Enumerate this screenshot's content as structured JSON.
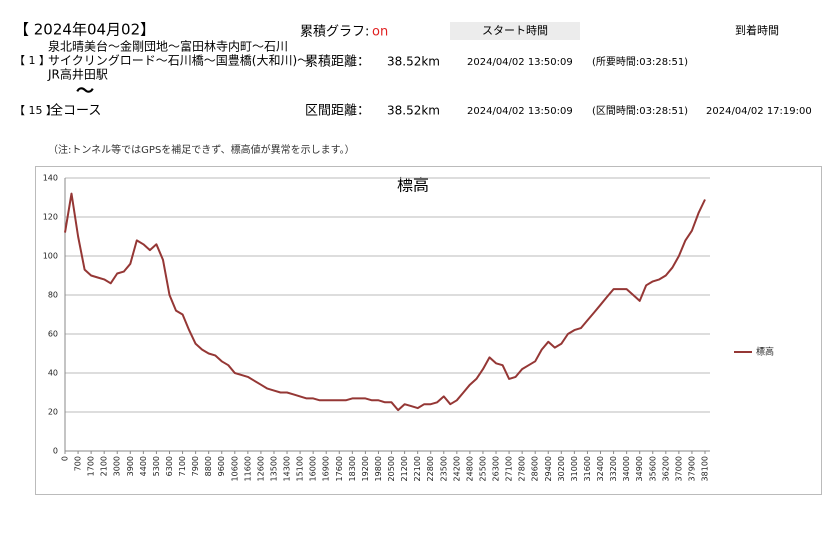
{
  "header": {
    "date": "【 2024年04月02】",
    "graph_label": "累積グラフ:",
    "graph_state": "on",
    "start_label": "スタート時間",
    "arrival_label": "到着時間"
  },
  "route": {
    "index": "【 1 】",
    "lines": [
      "泉北晴美台～金剛団地～富田林寺内町～石川",
      "サイクリングロード～石川橋～国豊橋(大和川)～",
      "JR高井田駅"
    ],
    "mark": "〜",
    "distance_label": "累積距離：",
    "distance": "38.52km",
    "start": "2024/04/02 13:50:09",
    "duration": "(所要時間:03:28:51)"
  },
  "course": {
    "index": "【 15 】",
    "name": "全コース",
    "distance_label": "区間距離：",
    "distance": "38.52km",
    "start": "2024/04/02 13:50:09",
    "duration": "(区間時間:03:28:51)",
    "arrival": "2024/04/02 17:19:00"
  },
  "note": "（注:トンネル等ではGPSを補足できず、標高値が異常を示します。）",
  "chart_data": {
    "type": "line",
    "title": "標高",
    "categories": [
      "0",
      null,
      "700",
      null,
      "1700",
      null,
      "2100",
      null,
      "3000",
      null,
      "3900",
      null,
      "4400",
      null,
      "5300",
      null,
      "6300",
      null,
      "7100",
      null,
      "7900",
      null,
      "8800",
      null,
      "9600",
      null,
      "10600",
      null,
      "11600",
      null,
      "12600",
      null,
      "13500",
      null,
      "14300",
      null,
      "15100",
      null,
      "16000",
      null,
      "16900",
      null,
      "17600",
      null,
      "18300",
      null,
      "19200",
      null,
      "19800",
      null,
      "20500",
      null,
      "21200",
      null,
      "22100",
      null,
      "22800",
      null,
      "23500",
      null,
      "24200",
      null,
      "24800",
      null,
      "25500",
      null,
      "26300",
      null,
      "27100",
      null,
      "27800",
      null,
      "28600",
      null,
      "29400",
      null,
      "30200",
      null,
      "31000",
      null,
      "31600",
      null,
      "32400",
      null,
      "33200",
      null,
      "34000",
      null,
      "34900",
      null,
      "35600",
      null,
      "36200",
      null,
      "37000",
      null,
      "37900",
      null,
      "38100"
    ],
    "series": [
      {
        "name": "標高",
        "color": "#953735",
        "values": [
          112,
          132,
          110,
          93,
          90,
          89,
          88,
          86,
          91,
          92,
          96,
          108,
          106,
          103,
          106,
          98,
          80,
          72,
          70,
          62,
          55,
          52,
          50,
          49,
          46,
          44,
          40,
          39,
          38,
          36,
          34,
          32,
          31,
          30,
          30,
          29,
          28,
          27,
          27,
          26,
          26,
          26,
          26,
          26,
          27,
          27,
          27,
          26,
          26,
          25,
          25,
          21,
          24,
          23,
          22,
          24,
          24,
          25,
          28,
          24,
          26,
          30,
          34,
          37,
          42,
          48,
          45,
          44,
          37,
          38,
          42,
          44,
          46,
          52,
          56,
          53,
          55,
          60,
          62,
          63,
          67,
          71,
          75,
          79,
          83,
          83,
          83,
          80,
          77,
          85,
          87,
          88,
          90,
          94,
          100,
          108,
          113,
          122,
          129
        ]
      }
    ],
    "ylim": [
      0,
      140
    ],
    "yticks": [
      0,
      20,
      40,
      60,
      80,
      100,
      120,
      140
    ],
    "grid": true,
    "legend": "right"
  }
}
